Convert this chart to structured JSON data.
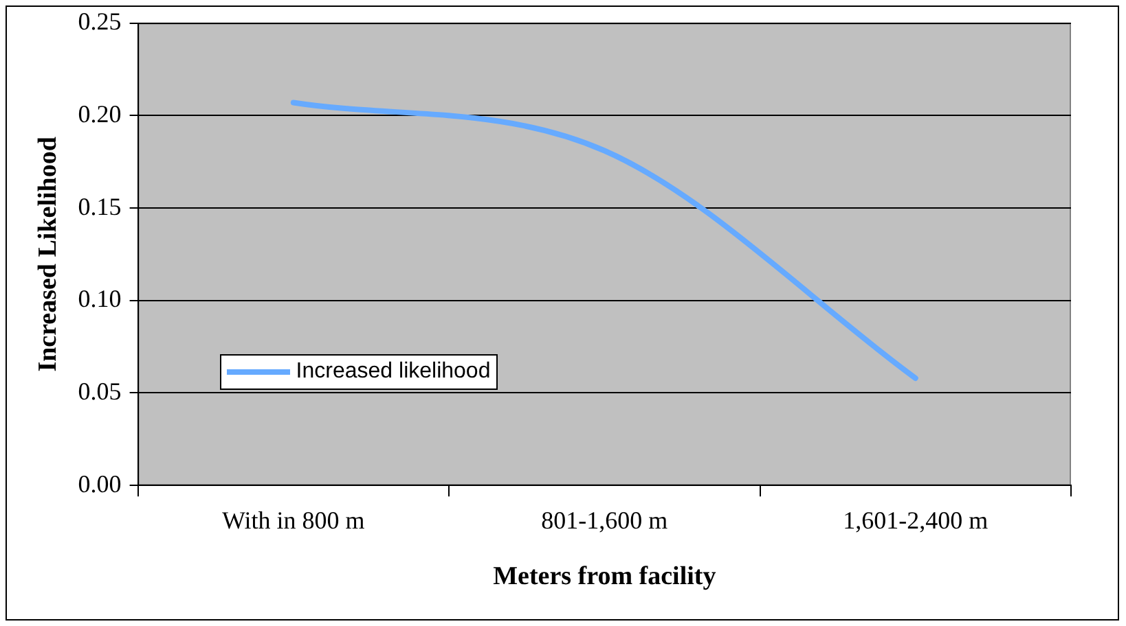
{
  "chart_data": {
    "type": "line",
    "xlabel": "Meters from facility",
    "ylabel": "Increased Likelihood",
    "categories": [
      "With in 800 m",
      "801-1,600 m",
      "1,601-2,400 m"
    ],
    "series": [
      {
        "name": "Increased likelihood",
        "color": "#66aaff",
        "values": [
          0.207,
          0.181,
          0.058
        ]
      }
    ],
    "ylim": [
      0,
      0.25
    ],
    "yticks": [
      {
        "value": 0,
        "label": "0.00"
      },
      {
        "value": 0.05,
        "label": "0.05"
      },
      {
        "value": 0.1,
        "label": "0.10"
      },
      {
        "value": 0.15,
        "label": "0.15"
      },
      {
        "value": 0.2,
        "label": "0.20"
      },
      {
        "value": 0.25,
        "label": "0.25"
      }
    ],
    "grid": "y",
    "legend": "bottom left",
    "marker": "none",
    "line_style": "solid"
  }
}
